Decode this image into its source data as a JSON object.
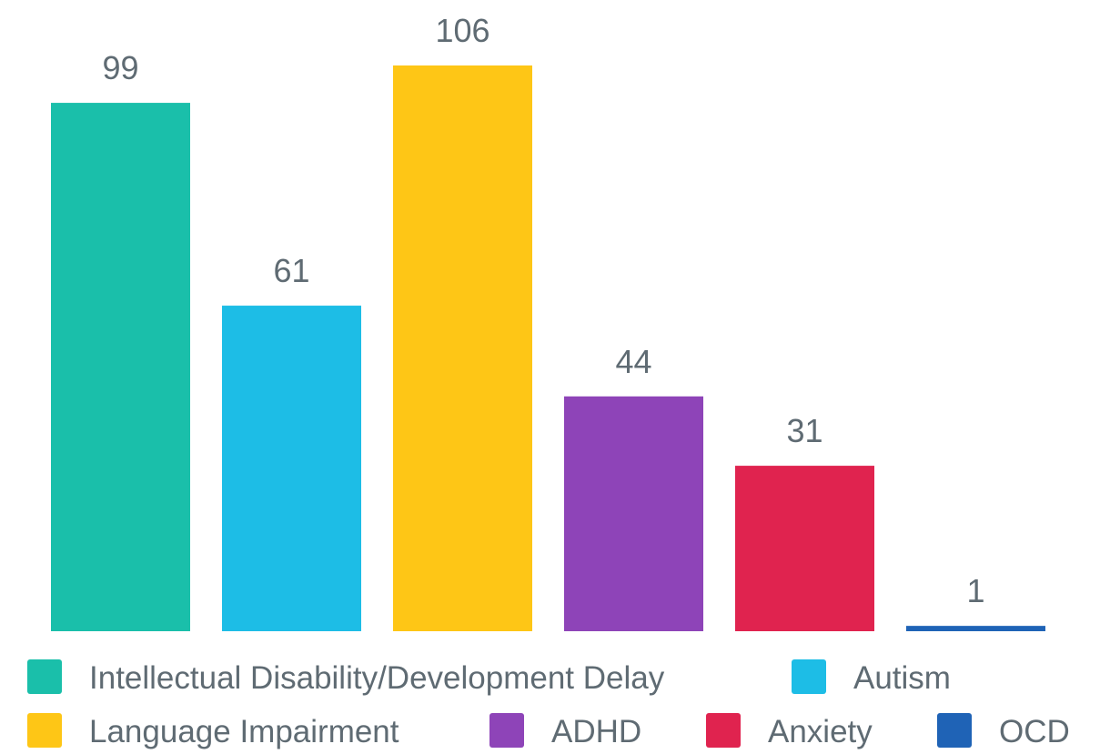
{
  "chart_data": {
    "type": "bar",
    "title": "",
    "xlabel": "",
    "ylabel": "",
    "grid": false,
    "legend_position": "bottom",
    "ylim": [
      0,
      106
    ],
    "categories": [
      "Intellectual Disability/Development Delay",
      "Autism",
      "Language Impairment",
      "ADHD",
      "Anxiety",
      "OCD"
    ],
    "values": [
      99,
      61,
      106,
      44,
      31,
      1
    ],
    "data_labels": [
      "99",
      "61",
      "106",
      "44",
      "31",
      "1"
    ],
    "colors": [
      "#1abfaa",
      "#1dbde6",
      "#fec616",
      "#8e44b8",
      "#e0234f",
      "#1f63b6"
    ],
    "legend": [
      {
        "label": "Intellectual Disability/Development Delay",
        "color": "#1abfaa"
      },
      {
        "label": "Autism",
        "color": "#1dbde6"
      },
      {
        "label": "Language Impairment",
        "color": "#fec616"
      },
      {
        "label": "ADHD",
        "color": "#8e44b8"
      },
      {
        "label": "Anxiety",
        "color": "#e0234f"
      },
      {
        "label": "OCD",
        "color": "#1f63b6"
      }
    ]
  }
}
